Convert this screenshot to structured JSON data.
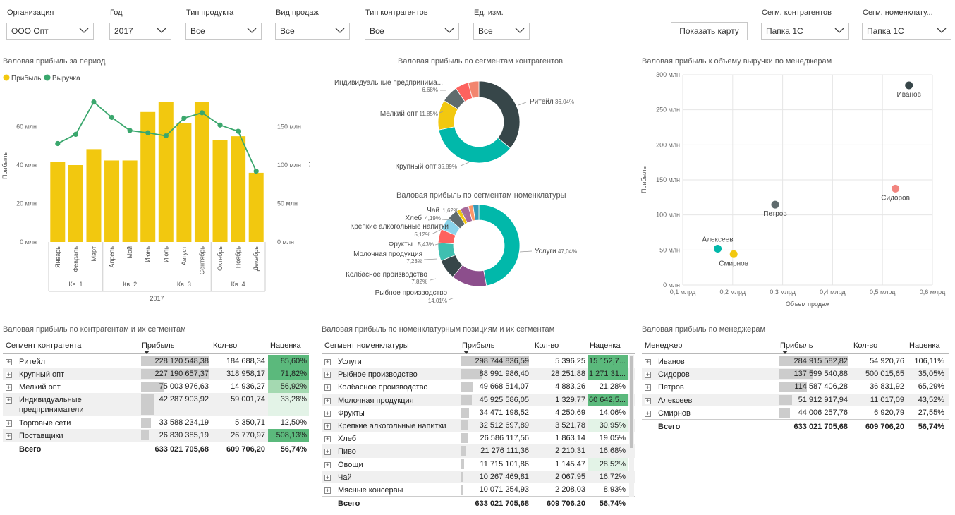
{
  "slicers": [
    {
      "id": "org",
      "label": "Организация",
      "value": "ООО Опт"
    },
    {
      "id": "year",
      "label": "Год",
      "value": "2017"
    },
    {
      "id": "product_type",
      "label": "Тип продукта",
      "value": "Все"
    },
    {
      "id": "sale_type",
      "label": "Вид продаж",
      "value": "Все"
    },
    {
      "id": "contractor_type",
      "label": "Тип контрагентов",
      "value": "Все"
    },
    {
      "id": "unit",
      "label": "Ед. изм.",
      "value": "Все"
    },
    {
      "id": "seg_contr",
      "label": "Сегм. контрагентов",
      "value": "Папка 1С"
    },
    {
      "id": "seg_nom",
      "label": "Сегм. номенклату...",
      "value": "Папка 1С"
    }
  ],
  "show_map_button": "Показать карту",
  "colors": {
    "profit": "#f2c80f",
    "revenue": "#3aa76d",
    "dark": "#374649",
    "teal": "#01b8aa",
    "purple": "#8c4e8c",
    "red": "#fd625e",
    "salmon": "#f2856f",
    "gray": "#5f6b6d",
    "green_high": "#5bb97c",
    "green_mid": "#a4d9b1",
    "green_low": "#e3f3e7"
  },
  "combo_chart": {
    "title": "Валовая прибыль за период",
    "legend": [
      {
        "name": "Прибыль",
        "color": "#f2c80f"
      },
      {
        "name": "Выручка",
        "color": "#3aa76d"
      }
    ],
    "y_left_label": "Прибыль",
    "y_right_label": "Выручка",
    "y_left_ticks": [
      "0 млн",
      "20 млн",
      "40 млн",
      "60 млн"
    ],
    "y_right_ticks": [
      "0 млн",
      "50 млн",
      "100 млн",
      "150 млн"
    ],
    "quarters": [
      "Кв. 1",
      "Кв. 2",
      "Кв. 3",
      "Кв. 4"
    ],
    "year_label": "2017"
  },
  "chart_data": [
    {
      "type": "bar",
      "title": "Валовая прибыль за период",
      "categories": [
        "Январь",
        "Февраль",
        "Март",
        "Апрель",
        "Май",
        "Июнь",
        "Июль",
        "Август",
        "Сентябрь",
        "Октябрь",
        "Ноябрь",
        "Декабрь"
      ],
      "series": [
        {
          "name": "Прибыль",
          "axis": "left",
          "chart": "bar",
          "values": [
            41.8,
            40.0,
            48.3,
            42.4,
            42.4,
            67.6,
            73.0,
            62.0,
            73.0,
            53.0,
            55.0,
            36.0
          ]
        },
        {
          "name": "Выручка",
          "axis": "right",
          "chart": "line",
          "values": [
            128,
            140,
            182,
            162,
            145,
            142,
            138,
            161,
            168,
            152,
            144,
            92
          ]
        }
      ],
      "ylabel": "Прибыль",
      "ylim": [
        0,
        80
      ],
      "y2label": "Выручка",
      "y2lim": [
        0,
        200
      ]
    },
    {
      "type": "pie",
      "title": "Валовая прибыль по сегментам контрагентов",
      "labels": [
        "Ритейл",
        "Крупный опт",
        "Мелкий опт",
        "Индивидуальные предпринима...",
        "Торговые сети",
        "Поставщики"
      ],
      "values": [
        36.04,
        35.89,
        11.85,
        6.68,
        5.3,
        4.24
      ],
      "value_labels": [
        "36,04%",
        "35,89%",
        "11,85%",
        "6,68%",
        "",
        ""
      ],
      "colors": [
        "#374649",
        "#01b8aa",
        "#f2c80f",
        "#5f6b6d",
        "#fd625e",
        "#f2856f"
      ]
    },
    {
      "type": "pie",
      "title": "Валовая прибыль по сегментам номенклатуры",
      "labels": [
        "Услуги",
        "Рыбное производство",
        "Колбасное производство",
        "Молочная продукция",
        "Фрукты",
        "Крепкие алкогольные напитки",
        "Хлеб",
        "Чай",
        "Пиво",
        "Овощи",
        "Мясные консервы"
      ],
      "values": [
        47.04,
        14.01,
        7.82,
        7.23,
        5.43,
        5.12,
        4.19,
        1.62,
        3.36,
        1.85,
        2.33
      ],
      "value_labels": [
        "47,04%",
        "14,01%",
        "7,82%",
        "7,23%",
        "5,43%",
        "5,12%",
        "4,19%",
        "1,62%",
        "",
        "",
        ""
      ],
      "colors": [
        "#01b8aa",
        "#8c4e8c",
        "#374649",
        "#3fbfb0",
        "#fd625e",
        "#8ad4eb",
        "#5f6b6d",
        "#f2c80f",
        "#a66999",
        "#fe9666",
        "#3599b8"
      ]
    },
    {
      "type": "scatter",
      "title": "Валовая прибыль к объему выручки по менеджерам",
      "xlabel": "Объем продаж",
      "ylabel": "Прибыль",
      "xlim": [
        0.1,
        0.6
      ],
      "ylim": [
        0,
        300
      ],
      "x_ticks": [
        "0,1 млрд",
        "0,2 млрд",
        "0,3 млрд",
        "0,4 млрд",
        "0,5 млрд",
        "0,6 млрд"
      ],
      "y_ticks": [
        "0 млн",
        "50 млн",
        "100 млн",
        "150 млн",
        "200 млн",
        "250 млн",
        "300 млн"
      ],
      "points": [
        {
          "label": "Иванов",
          "x": 0.553,
          "y": 284.9,
          "color": "#374649"
        },
        {
          "label": "Сидоров",
          "x": 0.526,
          "y": 137.6,
          "color": "#f2857f"
        },
        {
          "label": "Петров",
          "x": 0.285,
          "y": 114.6,
          "color": "#5f6b6d"
        },
        {
          "label": "Алексеев",
          "x": 0.17,
          "y": 51.9,
          "color": "#01b8aa"
        },
        {
          "label": "Смирнов",
          "x": 0.202,
          "y": 44.0,
          "color": "#f2c80f"
        }
      ]
    },
    {
      "type": "table",
      "title": "Валовая прибыль по контрагентам и их сегментам",
      "columns": [
        "Сегмент контрагента",
        "Прибыль",
        "Кол-во",
        "Наценка"
      ],
      "rows": [
        {
          "name": "Ритейл",
          "profit": "228 120 548,38",
          "qty": "184 688,34",
          "markup": "85,60%",
          "bar": 1.0,
          "level": 3
        },
        {
          "name": "Крупный опт",
          "profit": "227 190 657,37",
          "qty": "318 958,17",
          "markup": "71,82%",
          "bar": 0.996,
          "level": 3
        },
        {
          "name": "Мелкий опт",
          "profit": "75 003 976,63",
          "qty": "14 936,27",
          "markup": "56,92%",
          "bar": 0.33,
          "level": 2
        },
        {
          "name": "Индивидуальные предприниматели",
          "profit": "42 287 903,92",
          "qty": "59 001,74",
          "markup": "33,28%",
          "bar": 0.185,
          "level": 1
        },
        {
          "name": "Торговые сети",
          "profit": "33 588 234,19",
          "qty": "5 350,71",
          "markup": "12,50%",
          "bar": 0.147,
          "level": 0
        },
        {
          "name": "Поставщики",
          "profit": "26 830 385,19",
          "qty": "26 770,97",
          "markup": "508,13%",
          "bar": 0.118,
          "level": 3
        }
      ],
      "total": {
        "name": "Всего",
        "profit": "633 021 705,68",
        "qty": "609 706,20",
        "markup": "56,74%"
      }
    },
    {
      "type": "table",
      "title": "Валовая прибыль по номенклатурным позициям и их сегментам",
      "columns": [
        "Сегмент номенклатуры",
        "Прибыль",
        "Кол-во",
        "Наценка"
      ],
      "rows": [
        {
          "name": "Услуги",
          "profit": "298 744 836,59",
          "qty": "5 396,25",
          "markup": "15 152,7...",
          "bar": 1.0,
          "level": 3
        },
        {
          "name": "Рыбное производство",
          "profit": "88 991 986,40",
          "qty": "28 251,88",
          "markup": "1 271 31...",
          "bar": 0.298,
          "level": 3
        },
        {
          "name": "Колбасное производство",
          "profit": "49 668 514,07",
          "qty": "4 883,26",
          "markup": "21,28%",
          "bar": 0.166,
          "level": 0
        },
        {
          "name": "Молочная продукция",
          "profit": "45 925 586,05",
          "qty": "1 329,77",
          "markup": "60 642,5...",
          "bar": 0.154,
          "level": 3
        },
        {
          "name": "Фрукты",
          "profit": "34 471 198,52",
          "qty": "4 250,69",
          "markup": "14,06%",
          "bar": 0.115,
          "level": 0
        },
        {
          "name": "Крепкие алкогольные напитки",
          "profit": "32 512 697,89",
          "qty": "3 521,78",
          "markup": "30,95%",
          "bar": 0.109,
          "level": 1
        },
        {
          "name": "Хлеб",
          "profit": "26 586 117,56",
          "qty": "1 863,14",
          "markup": "19,05%",
          "bar": 0.089,
          "level": 0
        },
        {
          "name": "Пиво",
          "profit": "21 276 111,36",
          "qty": "2 210,31",
          "markup": "16,68%",
          "bar": 0.071,
          "level": 0
        },
        {
          "name": "Овощи",
          "profit": "11 715 101,86",
          "qty": "1 145,47",
          "markup": "28,52%",
          "bar": 0.039,
          "level": 1
        },
        {
          "name": "Чай",
          "profit": "10 267 469,81",
          "qty": "2 067,95",
          "markup": "16,72%",
          "bar": 0.034,
          "level": 0
        },
        {
          "name": "Мясные консервы",
          "profit": "10 071 254,93",
          "qty": "2 208,03",
          "markup": "8,93%",
          "bar": 0.034,
          "level": 0
        }
      ],
      "total": {
        "name": "Всего",
        "profit": "633 021 705,68",
        "qty": "609 706,20",
        "markup": "56,74%"
      }
    },
    {
      "type": "table",
      "title": "Валовая прибыль по менеджерам",
      "columns": [
        "Менеджер",
        "Прибыль",
        "Кол-во",
        "Наценка"
      ],
      "rows": [
        {
          "name": "Иванов",
          "profit": "284 915 582,82",
          "qty": "54 920,76",
          "markup": "106,11%",
          "bar": 1.0,
          "level": 0
        },
        {
          "name": "Сидоров",
          "profit": "137 599 540,88",
          "qty": "500 015,65",
          "markup": "35,05%",
          "bar": 0.483,
          "level": 0
        },
        {
          "name": "Петров",
          "profit": "114 587 406,28",
          "qty": "36 831,92",
          "markup": "65,29%",
          "bar": 0.402,
          "level": 0
        },
        {
          "name": "Алексеев",
          "profit": "51 912 917,94",
          "qty": "11 017,09",
          "markup": "43,52%",
          "bar": 0.182,
          "level": 0
        },
        {
          "name": "Смирнов",
          "profit": "44 006 257,76",
          "qty": "6 920,79",
          "markup": "27,55%",
          "bar": 0.154,
          "level": 0
        }
      ],
      "total": {
        "name": "Всего",
        "profit": "633 021 705,68",
        "qty": "609 706,20",
        "markup": "56,74%"
      }
    }
  ]
}
